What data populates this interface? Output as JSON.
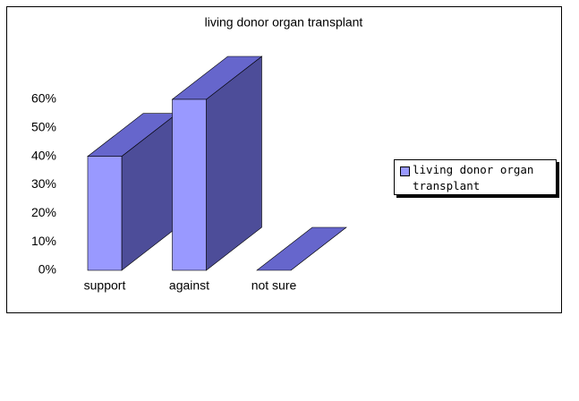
{
  "chart_data": {
    "type": "bar3d",
    "title": "living donor organ transplant",
    "categories": [
      "support",
      "against",
      "not sure"
    ],
    "series": [
      {
        "name": "living donor organ transplant",
        "color": "#9999ff",
        "values": [
          40,
          60,
          0
        ]
      }
    ],
    "ylim": [
      0,
      60
    ],
    "yticks": [
      {
        "value": 0,
        "label": "0%"
      },
      {
        "value": 10,
        "label": "10%"
      },
      {
        "value": 20,
        "label": "20%"
      },
      {
        "value": 30,
        "label": "30%"
      },
      {
        "value": 40,
        "label": "40%"
      },
      {
        "value": 50,
        "label": "50%"
      },
      {
        "value": 60,
        "label": "60%"
      }
    ],
    "grid": false,
    "legend": "right"
  }
}
